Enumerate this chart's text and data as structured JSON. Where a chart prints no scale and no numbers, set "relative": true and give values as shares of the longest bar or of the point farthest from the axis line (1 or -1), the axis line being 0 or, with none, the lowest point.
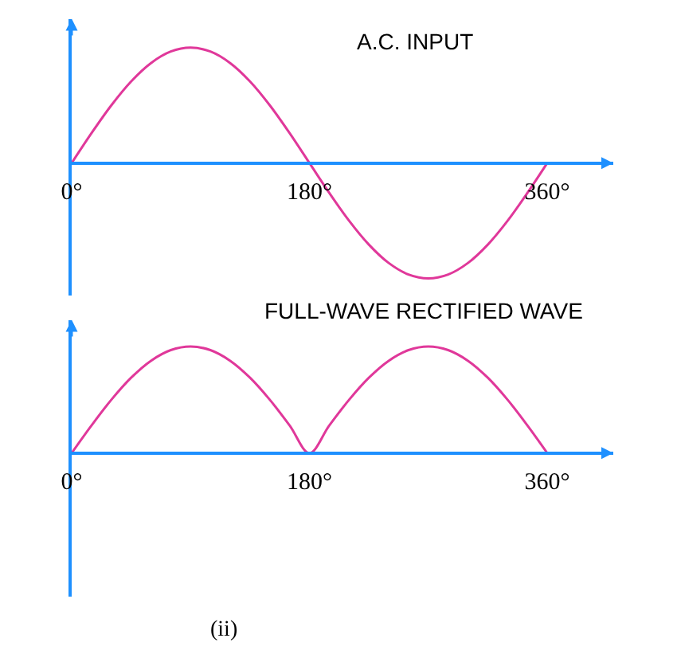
{
  "chart_data": [
    {
      "type": "line",
      "title": "A.C. INPUT",
      "relative": true,
      "color": "#e0389a",
      "x": [
        0,
        15,
        30,
        45,
        60,
        75,
        90,
        105,
        120,
        135,
        150,
        165,
        180,
        195,
        210,
        225,
        240,
        255,
        270,
        285,
        300,
        315,
        330,
        345,
        360
      ],
      "values": [
        0,
        0.259,
        0.5,
        0.707,
        0.866,
        0.966,
        1,
        0.966,
        0.866,
        0.707,
        0.5,
        0.259,
        0,
        -0.259,
        -0.5,
        -0.707,
        -0.866,
        -0.966,
        -1,
        -0.966,
        -0.866,
        -0.707,
        -0.5,
        -0.259,
        0
      ],
      "xlim": [
        0,
        410
      ],
      "xticks": [
        {
          "value": 0,
          "label": "0°"
        },
        {
          "value": 180,
          "label": "180°"
        },
        {
          "value": 360,
          "label": "360°"
        }
      ]
    },
    {
      "type": "line",
      "title": "FULL-WAVE RECTIFIED WAVE",
      "relative": true,
      "color": "#e0389a",
      "x": [
        0,
        15,
        30,
        45,
        60,
        75,
        90,
        105,
        120,
        135,
        150,
        165,
        180,
        195,
        210,
        225,
        240,
        255,
        270,
        285,
        300,
        315,
        330,
        345,
        360
      ],
      "values": [
        0,
        0.259,
        0.5,
        0.707,
        0.866,
        0.966,
        1,
        0.966,
        0.866,
        0.707,
        0.5,
        0.259,
        0,
        0.259,
        0.5,
        0.707,
        0.866,
        0.966,
        1,
        0.966,
        0.866,
        0.707,
        0.5,
        0.259,
        0
      ],
      "xlim": [
        0,
        410
      ],
      "xticks": [
        {
          "value": 0,
          "label": "0°"
        },
        {
          "value": 180,
          "label": "180°"
        },
        {
          "value": 360,
          "label": "360°"
        }
      ],
      "annotations": [
        "(ii)"
      ]
    }
  ]
}
